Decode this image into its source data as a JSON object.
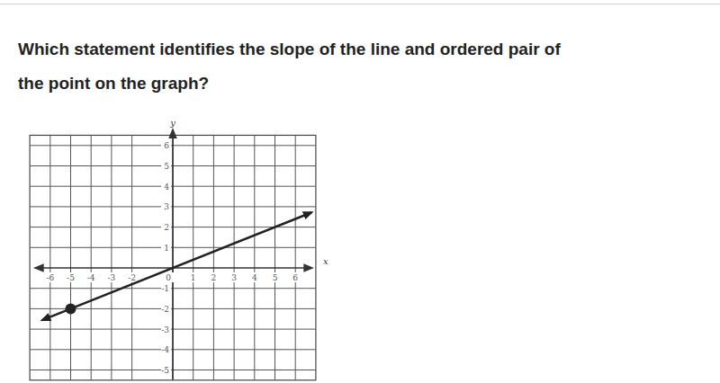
{
  "question": [
    "Which statement identifies the slope of the line and ordered pair of",
    "the point on the graph?"
  ],
  "chart_data": {
    "type": "line",
    "x_label": "x",
    "y_label": "y",
    "xlim": [
      -7,
      7
    ],
    "ylim": [
      -5.5,
      6.5
    ],
    "xticks": [
      -6,
      -5,
      -4,
      -3,
      -2,
      0,
      1,
      2,
      3,
      4,
      5,
      6
    ],
    "yticks": [
      -5,
      -4,
      -3,
      -2,
      -1,
      1,
      2,
      3,
      4,
      5,
      6
    ],
    "grid": true,
    "series": [
      {
        "type": "line",
        "color": "#222222",
        "marker": "arrow",
        "x": [
          -6.4,
          6.8
        ],
        "values": [
          -2.56,
          2.72
        ]
      },
      {
        "type": "scatter",
        "color": "#222222",
        "marker": "circle",
        "x": [
          -5
        ],
        "values": [
          -2
        ]
      }
    ]
  }
}
